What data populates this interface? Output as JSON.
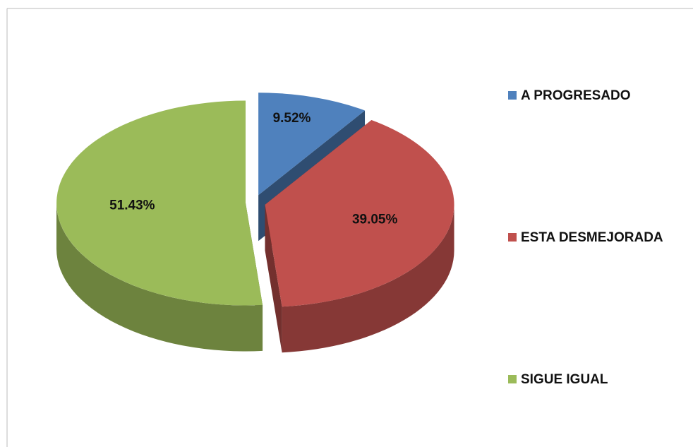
{
  "chart_data": {
    "type": "pie",
    "categories": [
      "A PROGRESADO",
      "ESTA DESMEJORADA",
      "SIGUE IGUAL"
    ],
    "values": [
      9.52,
      39.05,
      51.43
    ],
    "value_labels": [
      "9.52%",
      "39.05%",
      "51.43%"
    ],
    "colors": [
      "#4f81bd",
      "#c0504d",
      "#9bbb59"
    ],
    "legend": "right"
  }
}
